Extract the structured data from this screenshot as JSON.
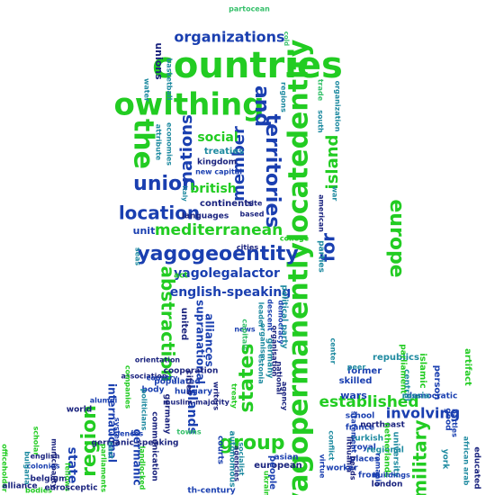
{
  "words": [
    "countries",
    "owlthing",
    "organizations",
    "the",
    "and",
    "territories",
    "yagopermanentlylocatedentity",
    "union",
    "location",
    "mediterranean",
    "yagogeoentity",
    "yagolegalactor",
    "abstraction",
    "english-speaking",
    "states",
    "group",
    "region",
    "established",
    "europe",
    "island",
    "for",
    "military",
    "involving",
    "nations",
    "member",
    "social",
    "british",
    "treaties",
    "kingdom",
    "new capital",
    "continents",
    "unit",
    "islands",
    "international",
    "supranational",
    "alliances",
    "united",
    "partocean",
    "cold",
    "water",
    "basketball",
    "unions",
    "attribute",
    "economies",
    "regions",
    "trade",
    "south",
    "organization",
    "war",
    "american",
    "parties",
    "political party",
    "college",
    "languages",
    "based",
    "site",
    "italy",
    "seas",
    "act",
    "leader",
    "descent",
    "democracy",
    "organism",
    "news",
    "capitals",
    "organisation",
    "germany",
    "estonia",
    "national",
    "agency",
    "republics",
    "former",
    "skilled",
    "peer",
    "center",
    "wars",
    "islamic",
    "person",
    "artifact",
    "central",
    "democratic",
    "school",
    "france",
    "turkish",
    "royal",
    "northeast",
    "regional",
    "places",
    "from",
    "statement",
    "lithuania",
    "romania",
    "university",
    "parliament",
    "netherlands",
    "heads",
    "buildings",
    "london",
    "worker",
    "virtue",
    "conflict",
    "european",
    "asian",
    "ukraine",
    "people",
    "socialist",
    "th-century",
    "agencies",
    "autonomous",
    "courts",
    "writers",
    "hungary",
    "populated",
    "muslim-majority",
    "cooperation",
    "orientation",
    "body",
    "association",
    "germanic",
    "germany",
    "communication",
    "politicians",
    "companies",
    "alumni",
    "world",
    "system",
    "state",
    "germanic-speaking",
    "scholar",
    "municipality",
    "english",
    "belgium",
    "colonies",
    "bodies",
    "fellows",
    "eurosceptic",
    "officeholder",
    "alliance",
    "bulgaria",
    "parliaments",
    "landlocked",
    "country",
    "cities",
    "east",
    "treaty",
    "towns",
    "good",
    "russia",
    "york",
    "battles",
    "educated",
    "african arab",
    "sciences",
    "cities"
  ]
}
